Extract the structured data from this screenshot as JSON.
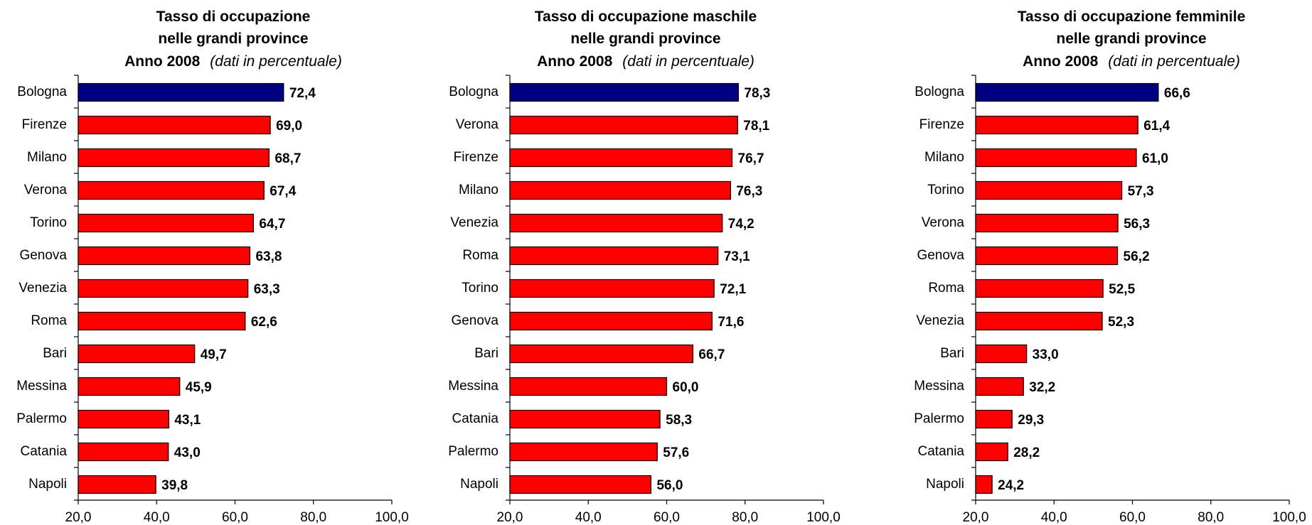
{
  "colors": {
    "highlight": "#000080",
    "bar": "#ff0000",
    "stroke": "#000000"
  },
  "chart_data": [
    {
      "type": "bar",
      "orientation": "horizontal",
      "title_lines": [
        "Tasso di occupazione",
        "nelle grandi province"
      ],
      "year_line": "Anno  2008",
      "subtitle": "(dati in percentuale)",
      "categories": [
        "Bologna",
        "Firenze",
        "Milano",
        "Verona",
        "Torino",
        "Genova",
        "Venezia",
        "Roma",
        "Bari",
        "Messina",
        "Palermo",
        "Catania",
        "Napoli"
      ],
      "values": [
        72.4,
        69.0,
        68.7,
        67.4,
        64.7,
        63.8,
        63.3,
        62.6,
        49.7,
        45.9,
        43.1,
        43.0,
        39.8
      ],
      "value_labels": [
        "72,4",
        "69,0",
        "68,7",
        "67,4",
        "64,7",
        "63,8",
        "63,3",
        "62,6",
        "49,7",
        "45,9",
        "43,1",
        "43,0",
        "39,8"
      ],
      "highlight_index": 0,
      "xlim": [
        20,
        100
      ],
      "xticks": [
        20,
        40,
        60,
        80,
        100
      ],
      "xtick_labels": [
        "20,0",
        "40,0",
        "60,0",
        "80,0",
        "100,0"
      ],
      "grid": false,
      "legend": "none"
    },
    {
      "type": "bar",
      "orientation": "horizontal",
      "title_lines": [
        "Tasso di occupazione maschile",
        "nelle grandi province"
      ],
      "year_line": "Anno  2008",
      "subtitle": "(dati in percentuale)",
      "categories": [
        "Bologna",
        "Verona",
        "Firenze",
        "Milano",
        "Venezia",
        "Roma",
        "Torino",
        "Genova",
        "Bari",
        "Messina",
        "Catania",
        "Palermo",
        "Napoli"
      ],
      "values": [
        78.3,
        78.1,
        76.7,
        76.3,
        74.2,
        73.1,
        72.1,
        71.6,
        66.7,
        60.0,
        58.3,
        57.6,
        56.0
      ],
      "value_labels": [
        "78,3",
        "78,1",
        "76,7",
        "76,3",
        "74,2",
        "73,1",
        "72,1",
        "71,6",
        "66,7",
        "60,0",
        "58,3",
        "57,6",
        "56,0"
      ],
      "highlight_index": 0,
      "xlim": [
        20,
        100
      ],
      "xticks": [
        20,
        40,
        60,
        80,
        100
      ],
      "xtick_labels": [
        "20,0",
        "40,0",
        "60,0",
        "80,0",
        "100,0"
      ],
      "grid": false,
      "legend": "none"
    },
    {
      "type": "bar",
      "orientation": "horizontal",
      "title_lines": [
        "Tasso di occupazione femminile",
        "nelle grandi province"
      ],
      "year_line": "Anno  2008",
      "subtitle": "(dati in percentuale)",
      "categories": [
        "Bologna",
        "Firenze",
        "Milano",
        "Torino",
        "Verona",
        "Genova",
        "Roma",
        "Venezia",
        "Bari",
        "Messina",
        "Palermo",
        "Catania",
        "Napoli"
      ],
      "values": [
        66.6,
        61.4,
        61.0,
        57.3,
        56.3,
        56.2,
        52.5,
        52.3,
        33.0,
        32.2,
        29.3,
        28.2,
        24.2
      ],
      "value_labels": [
        "66,6",
        "61,4",
        "61,0",
        "57,3",
        "56,3",
        "56,2",
        "52,5",
        "52,3",
        "33,0",
        "32,2",
        "29,3",
        "28,2",
        "24,2"
      ],
      "highlight_index": 0,
      "xlim": [
        20,
        100
      ],
      "xticks": [
        20,
        40,
        60,
        80,
        100
      ],
      "xtick_labels": [
        "20,0",
        "40,0",
        "60,0",
        "80,0",
        "100,0"
      ],
      "grid": false,
      "legend": "none"
    }
  ]
}
